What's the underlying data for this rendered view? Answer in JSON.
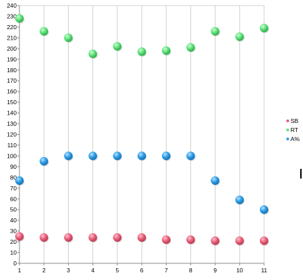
{
  "chart_data": {
    "type": "scatter",
    "title": "",
    "xlabel": "",
    "ylabel": "",
    "x": [
      1,
      2,
      3,
      4,
      5,
      6,
      7,
      8,
      9,
      10,
      11
    ],
    "xlim": [
      1,
      11
    ],
    "ylim": [
      0,
      240
    ],
    "y_tick_step": 10,
    "x_tick_labels": [
      "1",
      "2",
      "3",
      "4",
      "5",
      "6",
      "7",
      "8",
      "9",
      "10",
      "11"
    ],
    "y_tick_labels": [
      "0",
      "10",
      "20",
      "30",
      "40",
      "50",
      "60",
      "70",
      "80",
      "90",
      "100",
      "110",
      "120",
      "130",
      "140",
      "150",
      "160",
      "170",
      "180",
      "190",
      "200",
      "210",
      "220",
      "230",
      "240"
    ],
    "grid": {
      "vertical": true,
      "horizontal": false
    },
    "legend_position": "right",
    "series": [
      {
        "name": "SB",
        "color": "#e8607a",
        "values": [
          25,
          24,
          24,
          24,
          24,
          24,
          22,
          22,
          21,
          21,
          21
        ]
      },
      {
        "name": "RT",
        "color": "#5fe07a",
        "values": [
          228,
          216,
          210,
          195,
          202,
          197,
          198,
          201,
          216,
          211,
          219
        ]
      },
      {
        "name": "A%",
        "color": "#2f9de6",
        "values": [
          77,
          95,
          100,
          100,
          100,
          100,
          100,
          100,
          77,
          59,
          50
        ]
      }
    ]
  }
}
